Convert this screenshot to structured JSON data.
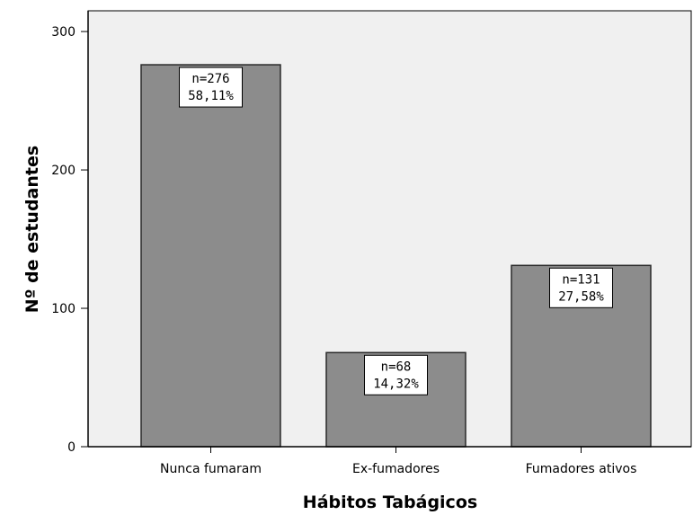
{
  "chart_data": {
    "type": "bar",
    "title": "",
    "xlabel": "Hábitos Tabágicos",
    "ylabel": "Nº de estudantes",
    "categories": [
      "Nunca fumaram",
      "Ex-fumadores",
      "Fumadores ativos"
    ],
    "values": [
      276,
      68,
      131
    ],
    "data_labels": [
      {
        "count": "n=276",
        "percent": "58,11%"
      },
      {
        "count": "n=68",
        "percent": "14,32%"
      },
      {
        "count": "n=131",
        "percent": "27,58%"
      }
    ],
    "yticks": [
      "0",
      "100",
      "200",
      "300"
    ],
    "ylim": [
      0,
      315
    ],
    "grid": false,
    "colors": {
      "plot_background": "#f0f0f0",
      "bar_fill": "#8c8c8c",
      "bar_stroke": "#2a2a2a"
    }
  }
}
